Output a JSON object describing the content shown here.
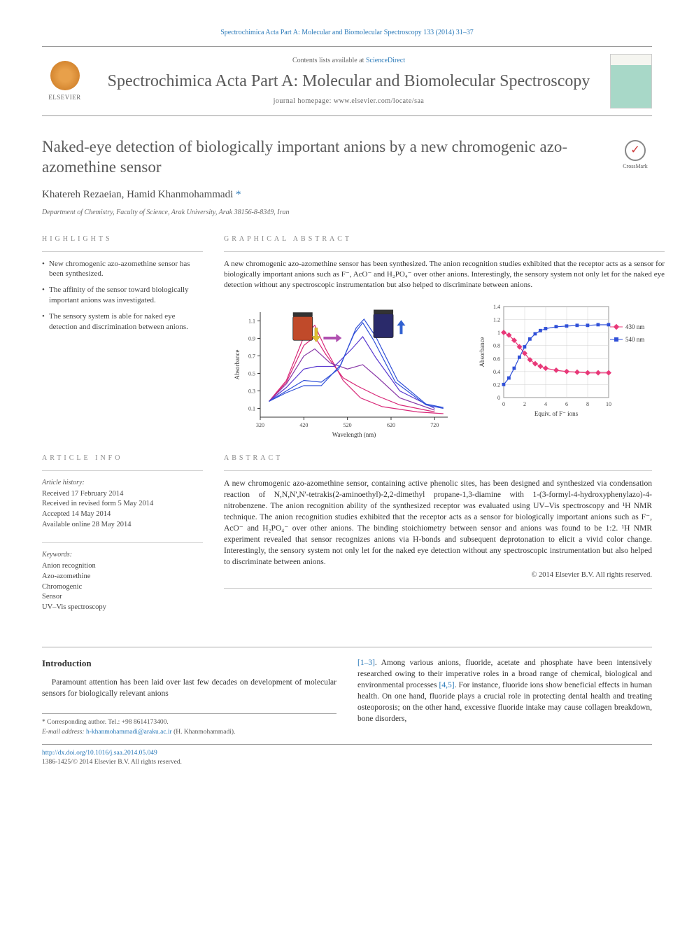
{
  "journal_citation": "Spectrochimica Acta Part A: Molecular and Biomolecular Spectroscopy 133 (2014) 31–37",
  "masthead": {
    "contents_prefix": "Contents lists available at ",
    "contents_link": "ScienceDirect",
    "journal_title": "Spectrochimica Acta Part A: Molecular and Biomolecular Spectroscopy",
    "homepage_prefix": "journal homepage: ",
    "homepage_url": "www.elsevier.com/locate/saa",
    "elsevier_label": "ELSEVIER",
    "cover_label": "SPECTROCHIMICA ACTA"
  },
  "article": {
    "title": "Naked-eye detection of biologically important anions by a new chromogenic azo-azomethine sensor",
    "crossmark": "CrossMark",
    "authors": "Khatereh Rezaeian, Hamid Khanmohammadi",
    "corr_marker": "*",
    "affiliation": "Department of Chemistry, Faculty of Science, Arak University, Arak 38156-8-8349, Iran"
  },
  "highlights": {
    "label": "HIGHLIGHTS",
    "items": [
      "New chromogenic azo-azomethine sensor has been synthesized.",
      "The affinity of the sensor toward biologically important anions was investigated.",
      "The sensory system is able for naked eye detection and discrimination between anions."
    ]
  },
  "graphical_abstract": {
    "label": "GRAPHICAL ABSTRACT",
    "text": "A new chromogenic azo-azomethine sensor has been synthesized. The anion recognition studies exhibited that the receptor acts as a sensor for biologically important anions such as F⁻, AcO⁻ and H₂PO₄⁻ over other anions. Interestingly, the sensory system not only let for the naked eye detection without any spectroscopic instrumentation but also helped to discriminate between anions.",
    "left_chart": {
      "type": "line",
      "xlabel": "Wavelength (nm)",
      "ylabel": "Absorbance",
      "xlim": [
        320,
        750
      ],
      "xticks": [
        320,
        420,
        520,
        620,
        720
      ],
      "ylim": [
        0,
        1.2
      ],
      "yticks": [
        0.1,
        0.3,
        0.5,
        0.7,
        0.9,
        1.1
      ],
      "background_color": "#ffffff",
      "axis_color": "#333333",
      "label_fontsize": 9,
      "tick_fontsize": 8,
      "vial_left_color": "#c04a2a",
      "vial_right_color": "#2a2a6a",
      "arrow_down_color": "#e0c030",
      "arrow_right_color": "#b050b0",
      "arrow_up_color": "#3060d0",
      "series": [
        {
          "color": "#d82878",
          "width": 1.2,
          "points": [
            [
              340,
              0.18
            ],
            [
              380,
              0.42
            ],
            [
              420,
              0.92
            ],
            [
              445,
              1.05
            ],
            [
              470,
              0.78
            ],
            [
              510,
              0.42
            ],
            [
              550,
              0.22
            ],
            [
              600,
              0.12
            ],
            [
              680,
              0.06
            ],
            [
              740,
              0.04
            ]
          ]
        },
        {
          "color": "#d82878",
          "width": 1.2,
          "points": [
            [
              340,
              0.18
            ],
            [
              380,
              0.4
            ],
            [
              420,
              0.82
            ],
            [
              445,
              0.92
            ],
            [
              470,
              0.72
            ],
            [
              510,
              0.45
            ],
            [
              545,
              0.35
            ],
            [
              590,
              0.24
            ],
            [
              640,
              0.14
            ],
            [
              720,
              0.06
            ]
          ]
        },
        {
          "color": "#8a3aa8",
          "width": 1.2,
          "points": [
            [
              340,
              0.18
            ],
            [
              380,
              0.38
            ],
            [
              420,
              0.7
            ],
            [
              445,
              0.78
            ],
            [
              480,
              0.62
            ],
            [
              520,
              0.55
            ],
            [
              555,
              0.6
            ],
            [
              590,
              0.45
            ],
            [
              640,
              0.22
            ],
            [
              720,
              0.08
            ]
          ]
        },
        {
          "color": "#5a3ad0",
          "width": 1.2,
          "points": [
            [
              340,
              0.18
            ],
            [
              380,
              0.34
            ],
            [
              420,
              0.55
            ],
            [
              450,
              0.58
            ],
            [
              490,
              0.58
            ],
            [
              530,
              0.78
            ],
            [
              555,
              0.92
            ],
            [
              585,
              0.68
            ],
            [
              640,
              0.3
            ],
            [
              720,
              0.1
            ]
          ]
        },
        {
          "color": "#3050d8",
          "width": 1.2,
          "points": [
            [
              340,
              0.18
            ],
            [
              380,
              0.3
            ],
            [
              420,
              0.42
            ],
            [
              460,
              0.4
            ],
            [
              500,
              0.55
            ],
            [
              535,
              0.95
            ],
            [
              555,
              1.08
            ],
            [
              580,
              0.88
            ],
            [
              630,
              0.4
            ],
            [
              700,
              0.14
            ],
            [
              740,
              0.1
            ]
          ]
        },
        {
          "color": "#3050d8",
          "width": 1.2,
          "points": [
            [
              340,
              0.18
            ],
            [
              380,
              0.28
            ],
            [
              420,
              0.36
            ],
            [
              460,
              0.36
            ],
            [
              505,
              0.6
            ],
            [
              540,
              1.02
            ],
            [
              558,
              1.12
            ],
            [
              585,
              0.92
            ],
            [
              635,
              0.42
            ],
            [
              700,
              0.15
            ],
            [
              740,
              0.11
            ]
          ]
        }
      ]
    },
    "right_chart": {
      "type": "scatter-line",
      "xlabel": "Equiv. of F⁻ ions",
      "ylabel": "Absorbance",
      "xlim": [
        0,
        10
      ],
      "xticks": [
        0,
        2,
        4,
        6,
        8,
        10
      ],
      "ylim": [
        0,
        1.4
      ],
      "yticks": [
        0,
        0.2,
        0.4,
        0.6,
        0.8,
        1.0,
        1.2,
        1.4
      ],
      "background_color": "#ffffff",
      "axis_color": "#333333",
      "grid_color": "#d0d0d0",
      "label_fontsize": 9,
      "tick_fontsize": 8,
      "marker_size": 4,
      "legend": [
        {
          "label": "430 nm",
          "color": "#e83878",
          "marker": "diamond"
        },
        {
          "label": "540 nm",
          "color": "#3050d8",
          "marker": "square"
        }
      ],
      "series_430": {
        "color": "#e83878",
        "points": [
          [
            0,
            1.0
          ],
          [
            0.5,
            0.96
          ],
          [
            1,
            0.88
          ],
          [
            1.5,
            0.78
          ],
          [
            2,
            0.68
          ],
          [
            2.5,
            0.58
          ],
          [
            3,
            0.52
          ],
          [
            3.5,
            0.48
          ],
          [
            4,
            0.45
          ],
          [
            5,
            0.42
          ],
          [
            6,
            0.4
          ],
          [
            7,
            0.39
          ],
          [
            8,
            0.38
          ],
          [
            9,
            0.38
          ],
          [
            10,
            0.38
          ]
        ]
      },
      "series_540": {
        "color": "#3050d8",
        "points": [
          [
            0,
            0.2
          ],
          [
            0.5,
            0.3
          ],
          [
            1,
            0.45
          ],
          [
            1.5,
            0.62
          ],
          [
            2,
            0.78
          ],
          [
            2.5,
            0.9
          ],
          [
            3,
            0.98
          ],
          [
            3.5,
            1.03
          ],
          [
            4,
            1.06
          ],
          [
            5,
            1.09
          ],
          [
            6,
            1.1
          ],
          [
            7,
            1.11
          ],
          [
            8,
            1.11
          ],
          [
            9,
            1.12
          ],
          [
            10,
            1.12
          ]
        ]
      }
    }
  },
  "article_info": {
    "label": "ARTICLE INFO",
    "history_heading": "Article history:",
    "history_lines": [
      "Received 17 February 2014",
      "Received in revised form 5 May 2014",
      "Accepted 14 May 2014",
      "Available online 28 May 2014"
    ],
    "keywords_heading": "Keywords:",
    "keywords": [
      "Anion recognition",
      "Azo-azomethine",
      "Chromogenic",
      "Sensor",
      "UV–Vis spectroscopy"
    ]
  },
  "abstract": {
    "label": "ABSTRACT",
    "text": "A new chromogenic azo-azomethine sensor, containing active phenolic sites, has been designed and synthesized via condensation reaction of N,N,N',N'-tetrakis(2-aminoethyl)-2,2-dimethyl propane-1,3-diamine with 1-(3-formyl-4-hydroxyphenylazo)-4-nitrobenzene. The anion recognition ability of the synthesized receptor was evaluated using UV–Vis spectroscopy and ¹H NMR technique. The anion recognition studies exhibited that the receptor acts as a sensor for biologically important anions such as F⁻, AcO⁻ and H₂PO₄⁻ over other anions. The binding stoichiometry between sensor and anions was found to be 1:2. ¹H NMR experiment revealed that sensor recognizes anions via H-bonds and subsequent deprotonation to elicit a vivid color change. Interestingly, the sensory system not only let for the naked eye detection without any spectroscopic instrumentation but also helped to discriminate between anions.",
    "copyright": "© 2014 Elsevier B.V. All rights reserved."
  },
  "body": {
    "intro_heading": "Introduction",
    "left_para": "Paramount attention has been laid over last few decades on development of molecular sensors for biologically relevant anions",
    "right_para": "[1–3]. Among various anions, fluoride, acetate and phosphate have been intensively researched owing to their imperative roles in a broad range of chemical, biological and environmental processes [4,5]. For instance, fluoride ions show beneficial effects in human health. On one hand, fluoride plays a crucial role in protecting dental health and treating osteoporosis; on the other hand, excessive fluoride intake may cause collagen breakdown, bone disorders,",
    "refs": {
      "r1": "[1–3]",
      "r2": "[4,5]"
    }
  },
  "footnote": {
    "corr_label": "* Corresponding author. Tel.: +98 8614173400.",
    "email_label": "E-mail address: ",
    "email": "h-khanmohammadi@araku.ac.ir",
    "email_suffix": " (H. Khanmohammadi)."
  },
  "bottom": {
    "doi": "http://dx.doi.org/10.1016/j.saa.2014.05.049",
    "issn_line": "1386-1425/© 2014 Elsevier B.V. All rights reserved."
  }
}
